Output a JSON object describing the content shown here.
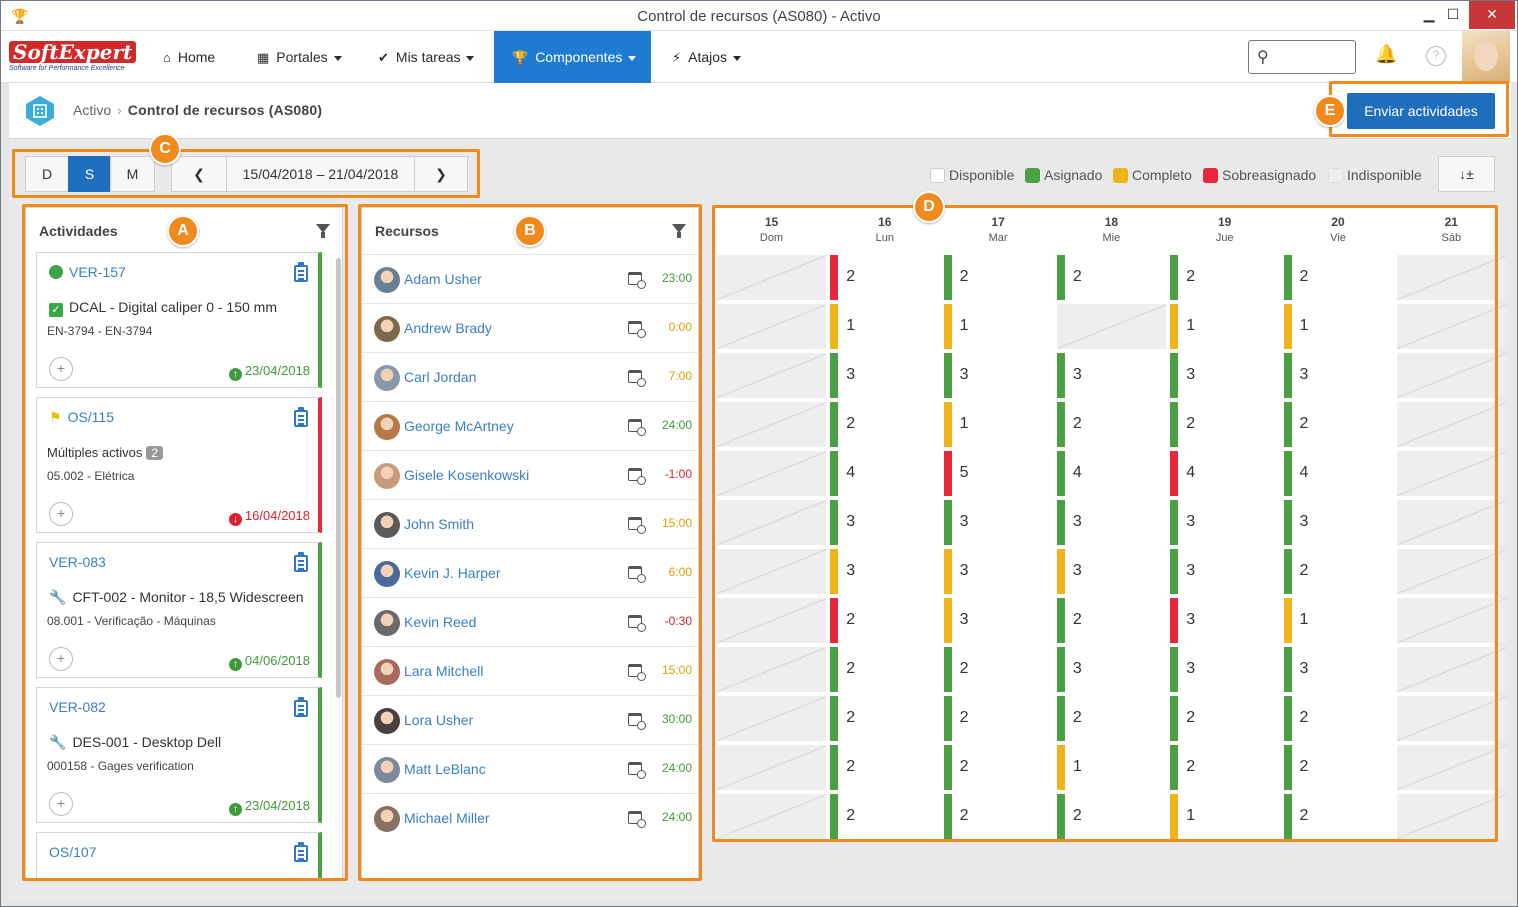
{
  "window": {
    "title": "Control de recursos (AS080) - Activo",
    "minimize": "▁",
    "maximize": "☐",
    "close": "✕"
  },
  "nav": {
    "logo_main": "SoftExpert",
    "logo_tagline": "Software for Performance Excellence",
    "items": [
      {
        "label": "Home",
        "icon": "home-icon"
      },
      {
        "label": "Portales",
        "icon": "grid-icon"
      },
      {
        "label": "Mis tareas",
        "icon": "check-icon"
      },
      {
        "label": "Componentes",
        "icon": "trophy-icon"
      },
      {
        "label": "Atajos",
        "icon": "bolt-icon"
      }
    ],
    "active_color": "#1f7bd1"
  },
  "breadcrumb": {
    "parent": "Activo",
    "current": "Control de recursos (AS080)"
  },
  "send_button": "Enviar actividades",
  "view_modes": [
    "D",
    "S",
    "M"
  ],
  "active_view": "S",
  "date_range": "15/04/2018 – 21/04/2018",
  "legend": [
    {
      "label": "Disponible",
      "color": "#ffffff"
    },
    {
      "label": "Asignado",
      "color": "#4aa043"
    },
    {
      "label": "Completo",
      "color": "#f0b319"
    },
    {
      "label": "Sobreasignado",
      "color": "#e8283a"
    },
    {
      "label": "Indisponible",
      "color": "#eeeeee"
    }
  ],
  "activities": {
    "title": "Actividades",
    "items": [
      {
        "code": "VER-157",
        "desc": "DCAL - Digital caliper 0 - 150 mm",
        "sub": "EN-3794 - EN-3794",
        "date": "23/04/2018",
        "status": "up",
        "bar": "#4aa043",
        "lead": "green-dot"
      },
      {
        "code": "OS/115",
        "desc": "Múltiples activos",
        "badge": "2",
        "sub": "05.002 - Elétrica",
        "date": "16/04/2018",
        "status": "down",
        "bar": "#e8283a",
        "lead": "flag"
      },
      {
        "code": "VER-083",
        "desc": "CFT-002 - Monitor - 18,5 Widescreen",
        "sub": "08.001 - Verificação - Máquinas",
        "date": "04/06/2018",
        "status": "up",
        "bar": "#4aa043",
        "lead": "wrench"
      },
      {
        "code": "VER-082",
        "desc": "DES-001 - Desktop Dell",
        "sub": "000158 - Gages verification",
        "date": "23/04/2018",
        "status": "up",
        "bar": "#4aa043",
        "lead": "wrench"
      },
      {
        "code": "OS/107",
        "desc": "",
        "sub": "",
        "date": "",
        "status": "",
        "bar": "#4aa043",
        "lead": ""
      }
    ]
  },
  "resources": {
    "title": "Recursos",
    "items": [
      {
        "name": "Adam Usher",
        "hours": "23:00",
        "hcolor": "#3f9a3a"
      },
      {
        "name": "Andrew Brady",
        "hours": "0:00",
        "hcolor": "#e0a000"
      },
      {
        "name": "Carl Jordan",
        "hours": "7:00",
        "hcolor": "#e0a000"
      },
      {
        "name": "George McArtney",
        "hours": "24:00",
        "hcolor": "#3f9a3a"
      },
      {
        "name": "Gisele Kosenkowski",
        "hours": "-1:00",
        "hcolor": "#d8232a"
      },
      {
        "name": "John Smith",
        "hours": "15:00",
        "hcolor": "#e0a000"
      },
      {
        "name": "Kevin J. Harper",
        "hours": "6:00",
        "hcolor": "#e0a000"
      },
      {
        "name": "Kevin Reed",
        "hours": "-0:30",
        "hcolor": "#d8232a"
      },
      {
        "name": "Lara Mitchell",
        "hours": "15:00",
        "hcolor": "#e0a000"
      },
      {
        "name": "Lora Usher",
        "hours": "30:00",
        "hcolor": "#3f9a3a"
      },
      {
        "name": "Matt LeBlanc",
        "hours": "24:00",
        "hcolor": "#3f9a3a"
      },
      {
        "name": "Michael Miller",
        "hours": "24:00",
        "hcolor": "#3f9a3a"
      }
    ]
  },
  "calendar": {
    "days": [
      {
        "n": "15",
        "w": "Dom"
      },
      {
        "n": "16",
        "w": "Lun"
      },
      {
        "n": "17",
        "w": "Mar"
      },
      {
        "n": "18",
        "w": "Mie"
      },
      {
        "n": "19",
        "w": "Jue"
      },
      {
        "n": "20",
        "w": "Vie"
      },
      {
        "n": "21",
        "w": "Sáb"
      }
    ],
    "rows": [
      [
        null,
        [
          "2",
          "r"
        ],
        [
          "2",
          "g"
        ],
        [
          "2",
          "g"
        ],
        [
          "2",
          "g"
        ],
        [
          "2",
          "g"
        ],
        null
      ],
      [
        null,
        [
          "1",
          "y"
        ],
        [
          "1",
          "y"
        ],
        null,
        [
          "1",
          "y"
        ],
        [
          "1",
          "y"
        ],
        null
      ],
      [
        null,
        [
          "3",
          "g"
        ],
        [
          "3",
          "g"
        ],
        [
          "3",
          "g"
        ],
        [
          "3",
          "g"
        ],
        [
          "3",
          "g"
        ],
        null
      ],
      [
        null,
        [
          "2",
          "g"
        ],
        [
          "1",
          "y"
        ],
        [
          "2",
          "g"
        ],
        [
          "2",
          "g"
        ],
        [
          "2",
          "g"
        ],
        null
      ],
      [
        null,
        [
          "4",
          "g"
        ],
        [
          "5",
          "r"
        ],
        [
          "4",
          "g"
        ],
        [
          "4",
          "r"
        ],
        [
          "4",
          "g"
        ],
        null
      ],
      [
        null,
        [
          "3",
          "g"
        ],
        [
          "3",
          "g"
        ],
        [
          "3",
          "g"
        ],
        [
          "3",
          "g"
        ],
        [
          "3",
          "g"
        ],
        null
      ],
      [
        null,
        [
          "3",
          "y"
        ],
        [
          "3",
          "y"
        ],
        [
          "3",
          "y"
        ],
        [
          "3",
          "g"
        ],
        [
          "2",
          "g"
        ],
        null
      ],
      [
        null,
        [
          "2",
          "r"
        ],
        [
          "3",
          "y"
        ],
        [
          "2",
          "g"
        ],
        [
          "3",
          "r"
        ],
        [
          "1",
          "y"
        ],
        null
      ],
      [
        null,
        [
          "2",
          "g"
        ],
        [
          "2",
          "g"
        ],
        [
          "3",
          "g"
        ],
        [
          "3",
          "g"
        ],
        [
          "3",
          "g"
        ],
        null
      ],
      [
        null,
        [
          "2",
          "g"
        ],
        [
          "2",
          "g"
        ],
        [
          "2",
          "g"
        ],
        [
          "2",
          "g"
        ],
        [
          "2",
          "g"
        ],
        null
      ],
      [
        null,
        [
          "2",
          "g"
        ],
        [
          "2",
          "g"
        ],
        [
          "1",
          "y"
        ],
        [
          "2",
          "g"
        ],
        [
          "2",
          "g"
        ],
        null
      ],
      [
        null,
        [
          "2",
          "g"
        ],
        [
          "2",
          "g"
        ],
        [
          "2",
          "g"
        ],
        [
          "1",
          "y"
        ],
        [
          "2",
          "g"
        ],
        null
      ]
    ],
    "bar_colors": {
      "g": "#4aa043",
      "y": "#f0b319",
      "r": "#e8283a"
    }
  },
  "callouts": [
    "A",
    "B",
    "C",
    "D",
    "E"
  ]
}
